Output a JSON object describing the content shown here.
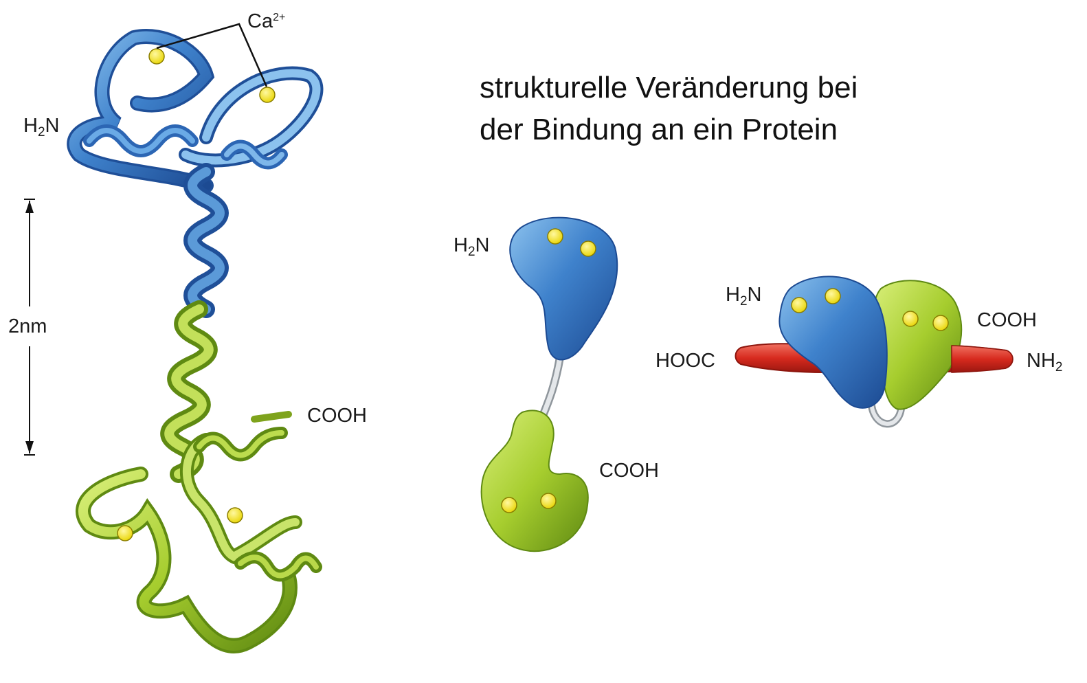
{
  "title": {
    "line1": "strukturelle Veränderung bei",
    "line2": "der Bindung an ein Protein"
  },
  "colors": {
    "n_lobe_blue": "#3f82cc",
    "n_lobe_dark": "#1f4f98",
    "c_lobe_green": "#a6cd2e",
    "c_lobe_dark": "#5f8a12",
    "calcium_yellow": "#f3e20d",
    "target_red": "#d72a1e",
    "linker_gray": "#d4d8dc"
  },
  "ribbon_model": {
    "ca_label": {
      "base": "Ca",
      "charge": "2+"
    },
    "n_terminus": {
      "base": "H",
      "sub": "2",
      "rest": "N"
    },
    "c_terminus": "COOH",
    "scale_label": "2nm"
  },
  "free_state": {
    "n_terminus": {
      "base": "H",
      "sub": "2",
      "rest": "N"
    },
    "c_terminus": "COOH"
  },
  "bound_state": {
    "n_terminus": {
      "base": "H",
      "sub": "2",
      "rest": "N"
    },
    "c_terminus": "COOH",
    "target_left": "HOOC",
    "target_right": {
      "base": "NH",
      "sub": "2"
    }
  }
}
